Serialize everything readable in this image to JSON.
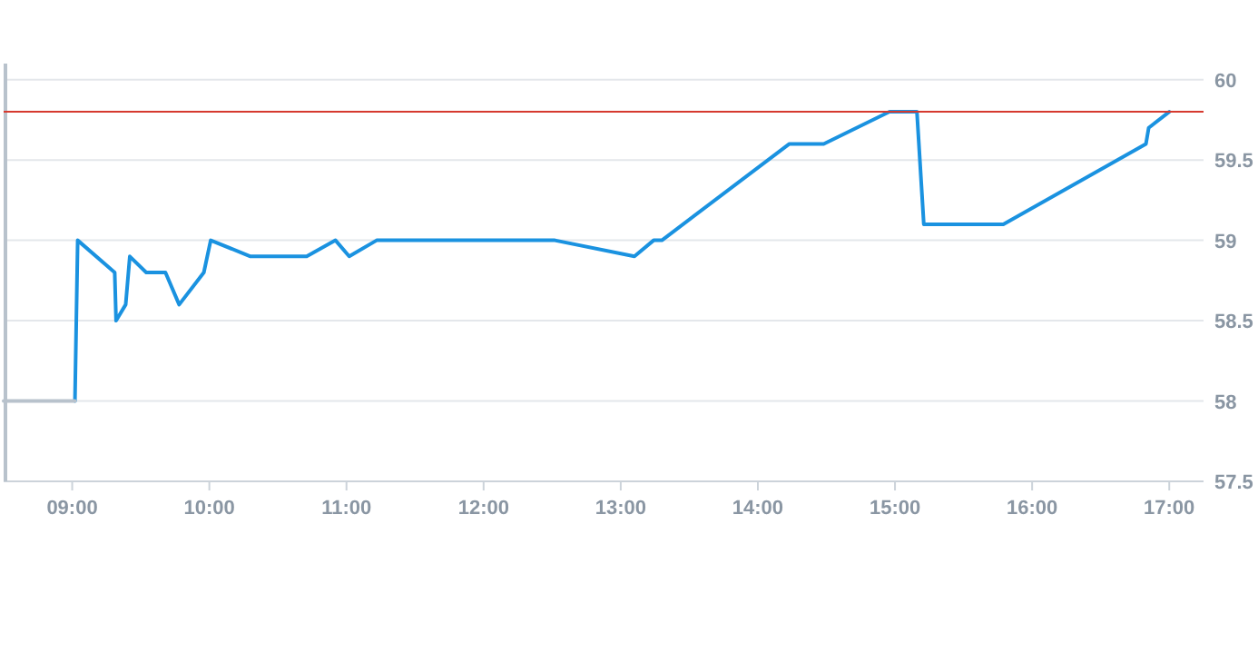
{
  "chart_data": {
    "type": "line",
    "x": [
      9.02,
      9.04,
      9.31,
      9.32,
      9.39,
      9.42,
      9.54,
      9.68,
      9.78,
      9.96,
      10.01,
      10.3,
      10.71,
      10.92,
      11.02,
      11.22,
      12.52,
      13.1,
      13.24,
      13.3,
      14.23,
      14.48,
      14.96,
      15.16,
      15.21,
      15.79,
      16.83,
      16.85,
      17.0
    ],
    "series": [
      {
        "color": "#1a92e0",
        "values": [
          58,
          59,
          58.8,
          58.5,
          58.6,
          58.9,
          58.8,
          58.8,
          58.6,
          58.8,
          59,
          58.9,
          58.9,
          59,
          58.9,
          59,
          59,
          58.9,
          59,
          59,
          59.6,
          59.6,
          59.8,
          59.8,
          59.1,
          59.1,
          59.6,
          59.7,
          59.8
        ]
      },
      {
        "color": "#b8c2cc",
        "x": [
          8.5,
          9.02
        ],
        "values": [
          58,
          58
        ]
      }
    ],
    "xlim": [
      8.5,
      17.25
    ],
    "xticks": [
      {
        "value": 9,
        "label": "09:00"
      },
      {
        "value": 10,
        "label": "10:00"
      },
      {
        "value": 11,
        "label": "11:00"
      },
      {
        "value": 12,
        "label": "12:00"
      },
      {
        "value": 13,
        "label": "13:00"
      },
      {
        "value": 14,
        "label": "14:00"
      },
      {
        "value": 15,
        "label": "15:00"
      },
      {
        "value": 16,
        "label": "16:00"
      },
      {
        "value": 17,
        "label": "17:00"
      }
    ],
    "ylim": [
      57.5,
      60.1
    ],
    "yticks": [
      57.5,
      58,
      58.5,
      59,
      59.5,
      60
    ],
    "grid": "y",
    "marker": "none",
    "line_style": "solid",
    "ref_lines": [
      {
        "axis": "y",
        "value": 59.8,
        "color": "#d63a2f"
      }
    ]
  }
}
